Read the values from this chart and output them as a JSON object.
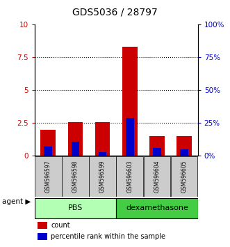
{
  "title": "GDS5036 / 28797",
  "samples": [
    "GSM596597",
    "GSM596598",
    "GSM596599",
    "GSM596603",
    "GSM596604",
    "GSM596605"
  ],
  "count_values": [
    2.0,
    2.6,
    2.6,
    8.3,
    1.5,
    1.5
  ],
  "percentile_values": [
    0.7,
    1.1,
    0.3,
    2.9,
    0.6,
    0.5
  ],
  "groups": [
    {
      "label": "PBS",
      "indices": [
        0,
        1,
        2
      ],
      "color": "#b3ffb3"
    },
    {
      "label": "dexamethasone",
      "indices": [
        3,
        4,
        5
      ],
      "color": "#44cc44"
    }
  ],
  "bar_width": 0.55,
  "blue_bar_width": 0.3,
  "ylim_left": [
    0,
    10
  ],
  "ylim_right": [
    0,
    100
  ],
  "yticks_left": [
    0,
    2.5,
    5,
    7.5,
    10
  ],
  "yticks_right": [
    0,
    25,
    50,
    75,
    100
  ],
  "ytick_labels_left": [
    "0",
    "2.5",
    "5",
    "7.5",
    "10"
  ],
  "ytick_labels_right": [
    "0%",
    "25%",
    "50%",
    "75%",
    "100%"
  ],
  "color_count": "#cc0000",
  "color_percentile": "#0000cc",
  "bg_xticklabels": "#cccccc",
  "legend_count": "count",
  "legend_percentile": "percentile rank within the sample",
  "agent_label": "agent"
}
